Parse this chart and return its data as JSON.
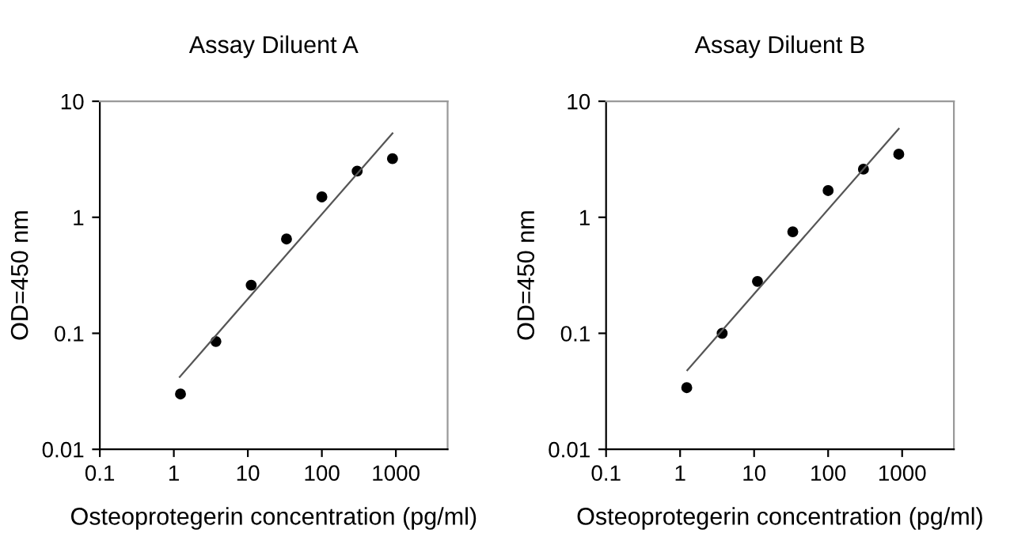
{
  "chart_data": [
    {
      "type": "scatter",
      "title": "Assay Diluent A",
      "xlabel": "Osteoprotegerin concentration (pg/ml)",
      "ylabel": "OD=450 nm",
      "log": "xy",
      "xlim": [
        0.1,
        5000
      ],
      "ylim": [
        0.01,
        10
      ],
      "xticks": [
        0.1,
        1,
        10,
        100,
        1000
      ],
      "yticks": [
        0.01,
        0.1,
        1,
        10
      ],
      "grid": false,
      "legend": false,
      "marker": "circle",
      "series": [
        {
          "color": "#000000",
          "x": [
            1.23,
            3.7,
            11.1,
            33.3,
            100,
            300,
            900
          ],
          "values": [
            0.03,
            0.085,
            0.26,
            0.65,
            1.5,
            2.5,
            3.2
          ]
        },
        {
          "type": "line",
          "color": "#555555",
          "marker": "none",
          "line_style": "solid",
          "x": [
            1.2,
            900
          ],
          "values": [
            0.042,
            5.3
          ]
        }
      ]
    },
    {
      "type": "scatter",
      "title": "Assay Diluent B",
      "xlabel": "Osteoprotegerin concentration (pg/ml)",
      "ylabel": "OD=450 nm",
      "log": "xy",
      "xlim": [
        0.1,
        5000
      ],
      "ylim": [
        0.01,
        10
      ],
      "xticks": [
        0.1,
        1,
        10,
        100,
        1000
      ],
      "yticks": [
        0.01,
        0.1,
        1,
        10
      ],
      "grid": false,
      "legend": false,
      "marker": "circle",
      "series": [
        {
          "color": "#000000",
          "x": [
            1.23,
            3.7,
            11.1,
            33.3,
            100,
            300,
            900
          ],
          "values": [
            0.034,
            0.1,
            0.28,
            0.75,
            1.7,
            2.6,
            3.5
          ]
        },
        {
          "type": "line",
          "color": "#555555",
          "marker": "none",
          "line_style": "solid",
          "x": [
            1.25,
            900
          ],
          "values": [
            0.048,
            5.8
          ]
        }
      ]
    }
  ]
}
